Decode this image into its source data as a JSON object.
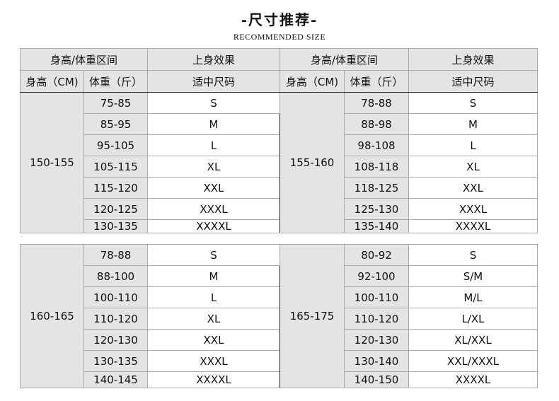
{
  "title": "-尺寸推荐-",
  "subtitle": "RECOMMENDED SIZE",
  "header": {
    "range": "身高/体重区间",
    "effect": "上身效果",
    "height": "身高（CM)",
    "weight": "体重（斤）",
    "size": "适中尺码"
  },
  "colors": {
    "gray": "#e4e4e4",
    "border": "#222222",
    "grid": "#aaaaaa"
  },
  "tables": [
    {
      "groups": [
        {
          "height": "150-155",
          "rows": [
            [
              "75-85",
              "S"
            ],
            [
              "85-95",
              "M"
            ],
            [
              "95-105",
              "L"
            ],
            [
              "105-115",
              "XL"
            ],
            [
              "115-120",
              "XXL"
            ],
            [
              "120-125",
              "XXXL"
            ],
            [
              "130-135",
              "XXXXL"
            ]
          ]
        },
        {
          "height": "155-160",
          "rows": [
            [
              "78-88",
              "S"
            ],
            [
              "88-98",
              "M"
            ],
            [
              "98-108",
              "L"
            ],
            [
              "108-118",
              "XL"
            ],
            [
              "118-125",
              "XXL"
            ],
            [
              "125-130",
              "XXXL"
            ],
            [
              "135-140",
              "XXXXL"
            ]
          ]
        }
      ]
    },
    {
      "groups": [
        {
          "height": "160-165",
          "rows": [
            [
              "78-88",
              "S"
            ],
            [
              "88-100",
              "M"
            ],
            [
              "100-110",
              "L"
            ],
            [
              "110-120",
              "XL"
            ],
            [
              "120-130",
              "XXL"
            ],
            [
              "130-135",
              "XXXL"
            ],
            [
              "140-145",
              "XXXXL"
            ]
          ]
        },
        {
          "height": "165-175",
          "rows": [
            [
              "80-92",
              "S"
            ],
            [
              "92-100",
              "S/M"
            ],
            [
              "100-110",
              "M/L"
            ],
            [
              "110-120",
              "L/XL"
            ],
            [
              "120-130",
              "XL/XXL"
            ],
            [
              "130-140",
              "XXL/XXXL"
            ],
            [
              "140-150",
              "XXXXL"
            ]
          ]
        }
      ]
    }
  ]
}
